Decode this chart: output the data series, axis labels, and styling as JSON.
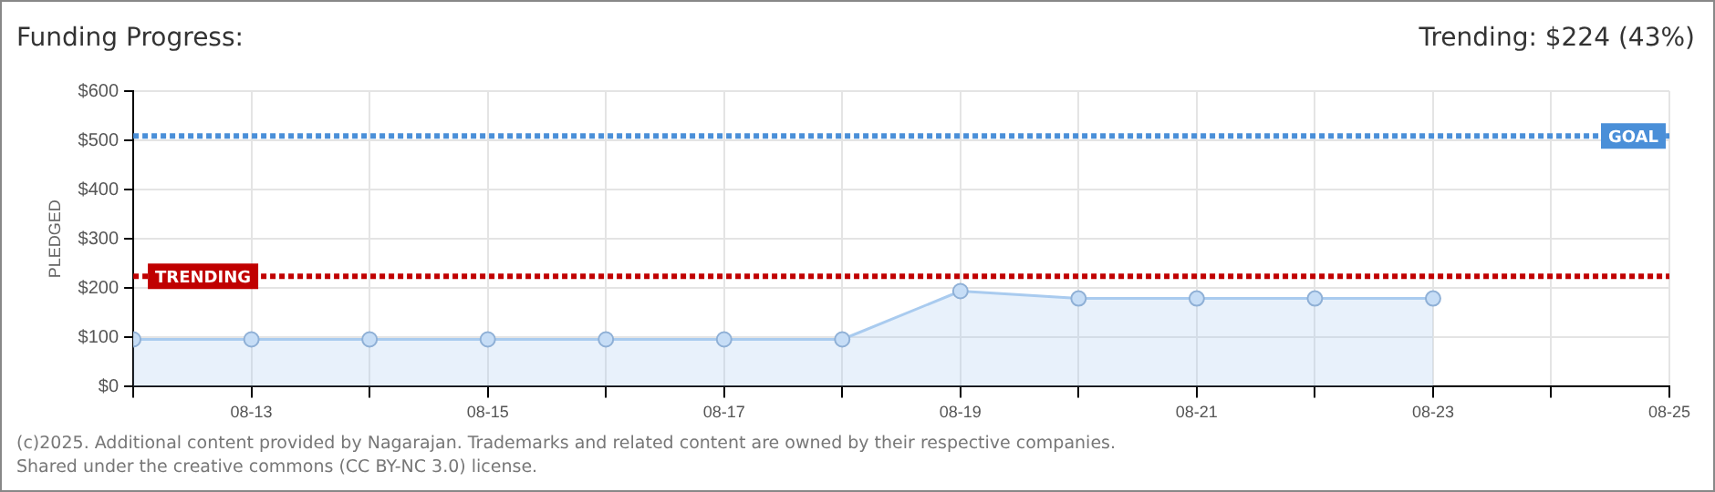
{
  "chart_data": {
    "type": "area",
    "title": "Funding Progress:",
    "ylabel": "PLEDGED",
    "annotations": [
      "Trending: $224 (43%)",
      "(c)2025. Additional content provided by Nagarajan. Trademarks and related content are owned by their respective companies.",
      "Shared under the creative commons (CC BY-NC 3.0) license."
    ],
    "x": [
      "--08-12",
      "--08-13",
      "--08-14",
      "--08-15",
      "--08-16",
      "--08-17",
      "--08-18",
      "--08-19",
      "--08-20",
      "--08-21",
      "--08-22",
      "--08-23"
    ],
    "series": [
      {
        "color": "#a9cbef",
        "values": [
          96,
          96,
          96,
          96,
          96,
          96,
          96,
          194,
          179,
          179,
          179,
          179
        ]
      }
    ],
    "xlim": [
      "--08-12",
      "--08-25"
    ],
    "xticks": [
      {
        "value": "--08-12",
        "label": null
      },
      {
        "value": "--08-13",
        "label": "08-13"
      },
      {
        "value": "--08-14",
        "label": null
      },
      {
        "value": "--08-15",
        "label": "08-15"
      },
      {
        "value": "--08-16",
        "label": null
      },
      {
        "value": "--08-17",
        "label": "08-17"
      },
      {
        "value": "--08-18",
        "label": null
      },
      {
        "value": "--08-19",
        "label": "08-19"
      },
      {
        "value": "--08-20",
        "label": null
      },
      {
        "value": "--08-21",
        "label": "08-21"
      },
      {
        "value": "--08-22",
        "label": null
      },
      {
        "value": "--08-23",
        "label": "08-23"
      },
      {
        "value": "--08-24",
        "label": null
      },
      {
        "value": "--08-25",
        "label": "08-25"
      }
    ],
    "ylim": [
      0,
      600
    ],
    "yticks": [
      {
        "value": 0,
        "label": "$0"
      },
      {
        "value": 100,
        "label": "$100"
      },
      {
        "value": 200,
        "label": "$200"
      },
      {
        "value": 300,
        "label": "$300"
      },
      {
        "value": 400,
        "label": "$400"
      },
      {
        "value": 500,
        "label": "$500"
      },
      {
        "value": 600,
        "label": "$600"
      }
    ],
    "ref_lines": [
      {
        "axis": "y",
        "value": 509,
        "label": "GOAL",
        "color": "#4a8fd8",
        "line_style": "dotted"
      },
      {
        "axis": "y",
        "value": 224,
        "label": "TRENDING",
        "color": "#c00000",
        "line_style": "dotted"
      }
    ],
    "grid": true,
    "marker": "circle",
    "legend": false
  }
}
